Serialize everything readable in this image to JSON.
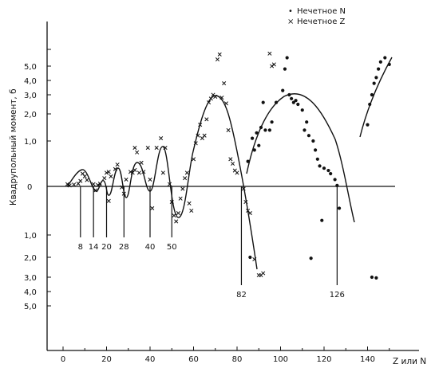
{
  "chart_data": {
    "type": "scatter",
    "title": "",
    "xlabel": "Z или N",
    "ylabel": "Квадрупольный момент, б",
    "xlim": [
      -10,
      160
    ],
    "x_ticks": [
      0,
      20,
      40,
      60,
      80,
      100,
      120,
      140
    ],
    "y_ticks_positive": [
      "1,0",
      "2,0",
      "3,0",
      "4,0",
      "5,0"
    ],
    "y_ticks_zero": "0",
    "y_ticks_negative": [
      "1,0",
      "2,0",
      "3,0",
      "4,0",
      "5,0"
    ],
    "y_scale": "compressed (nonlinear), positive above zero line, negative below",
    "grid": false,
    "legend_position": "top-right",
    "legend": [
      {
        "symbol": "•",
        "label": "Нечетное N"
      },
      {
        "symbol": "×",
        "label": "Нечетное Z"
      }
    ],
    "magic_numbers": [
      "8",
      "14",
      "20",
      "28",
      "40",
      "50",
      "82",
      "126"
    ],
    "magic_number_x": [
      8,
      14,
      20,
      28,
      40,
      50,
      82,
      126
    ],
    "series": [
      {
        "name": "Нечетное Z",
        "marker": "cross",
        "points": [
          [
            2,
            0.05
          ],
          [
            3,
            0.02
          ],
          [
            5,
            0.04
          ],
          [
            7,
            0.06
          ],
          [
            8,
            0.12
          ],
          [
            9,
            0.28
          ],
          [
            10,
            0.22
          ],
          [
            11,
            0.14
          ],
          [
            14,
            0.05
          ],
          [
            15,
            -0.08
          ],
          [
            16,
            0.03
          ],
          [
            17,
            0.06
          ],
          [
            19,
            0.18
          ],
          [
            20,
            0.3
          ],
          [
            21,
            0.32
          ],
          [
            21,
            -0.3
          ],
          [
            22,
            0.22
          ],
          [
            24,
            0.38
          ],
          [
            25,
            0.48
          ],
          [
            27,
            -0.02
          ],
          [
            28,
            -0.15
          ],
          [
            29,
            0.15
          ],
          [
            31,
            0.32
          ],
          [
            32,
            0.3
          ],
          [
            33,
            0.36
          ],
          [
            33,
            0.85
          ],
          [
            34,
            0.75
          ],
          [
            35,
            0.3
          ],
          [
            36,
            0.52
          ],
          [
            37,
            0.32
          ],
          [
            39,
            0.85
          ],
          [
            40,
            0.15
          ],
          [
            41,
            -0.45
          ],
          [
            43,
            0.85
          ],
          [
            45,
            1.1
          ],
          [
            46,
            0.3
          ],
          [
            47,
            0.85
          ],
          [
            49,
            0.05
          ],
          [
            50,
            -0.32
          ],
          [
            51,
            -0.6
          ],
          [
            52,
            -0.72
          ],
          [
            53,
            -0.55
          ],
          [
            54,
            -0.25
          ],
          [
            55,
            -0.05
          ],
          [
            56,
            0.18
          ],
          [
            57,
            0.3
          ],
          [
            58,
            -0.35
          ],
          [
            59,
            -0.5
          ],
          [
            60,
            0.6
          ],
          [
            61,
            0.95
          ],
          [
            62,
            1.2
          ],
          [
            63,
            1.6
          ],
          [
            64,
            1.1
          ],
          [
            65,
            1.2
          ],
          [
            66,
            1.8
          ],
          [
            67,
            2.6
          ],
          [
            68,
            2.8
          ],
          [
            69,
            3.0
          ],
          [
            70,
            2.9
          ],
          [
            71,
            5.8
          ],
          [
            72,
            6.4
          ],
          [
            73,
            2.85
          ],
          [
            74,
            3.8
          ],
          [
            75,
            2.55
          ],
          [
            76,
            1.4
          ],
          [
            77,
            0.6
          ],
          [
            78,
            0.5
          ],
          [
            79,
            0.35
          ],
          [
            80,
            0.3
          ],
          [
            83,
            -0.05
          ],
          [
            84,
            -0.32
          ],
          [
            85,
            -0.5
          ],
          [
            86,
            -0.55
          ],
          [
            88,
            -2.1
          ],
          [
            90,
            -2.9
          ],
          [
            91,
            -2.9
          ],
          [
            92,
            -2.8
          ],
          [
            95,
            6.5
          ],
          [
            96,
            5.0
          ],
          [
            97,
            5.2
          ]
        ]
      },
      {
        "name": "Нечетное N",
        "marker": "dot",
        "points": [
          [
            85,
            0.55
          ],
          [
            86,
            -2.0
          ],
          [
            87,
            1.1
          ],
          [
            88,
            0.8
          ],
          [
            89,
            1.3
          ],
          [
            90,
            0.9
          ],
          [
            91,
            1.5
          ],
          [
            92,
            2.6
          ],
          [
            93,
            1.4
          ],
          [
            95,
            1.4
          ],
          [
            96,
            1.7
          ],
          [
            98,
            2.6
          ],
          [
            101,
            3.3
          ],
          [
            102,
            4.8
          ],
          [
            103,
            6.0
          ],
          [
            104,
            3.0
          ],
          [
            105,
            2.8
          ],
          [
            106,
            2.6
          ],
          [
            107,
            2.7
          ],
          [
            108,
            2.5
          ],
          [
            110,
            2.2
          ],
          [
            111,
            1.4
          ],
          [
            112,
            1.7
          ],
          [
            113,
            1.2
          ],
          [
            114,
            -2.05
          ],
          [
            115,
            1.0
          ],
          [
            116,
            0.8
          ],
          [
            117,
            0.6
          ],
          [
            118,
            0.45
          ],
          [
            119,
            -0.7
          ],
          [
            120,
            0.4
          ],
          [
            122,
            0.35
          ],
          [
            123,
            0.28
          ],
          [
            125,
            0.15
          ],
          [
            126,
            0.02
          ],
          [
            127,
            -0.45
          ],
          [
            140,
            1.6
          ],
          [
            141,
            2.5
          ],
          [
            142,
            3.0
          ],
          [
            143,
            3.8
          ],
          [
            144,
            4.2
          ],
          [
            145,
            4.8
          ],
          [
            146,
            5.5
          ],
          [
            148,
            6.0
          ],
          [
            150,
            5.2
          ],
          [
            142,
            -3.0
          ],
          [
            144,
            -3.05
          ]
        ]
      }
    ]
  }
}
